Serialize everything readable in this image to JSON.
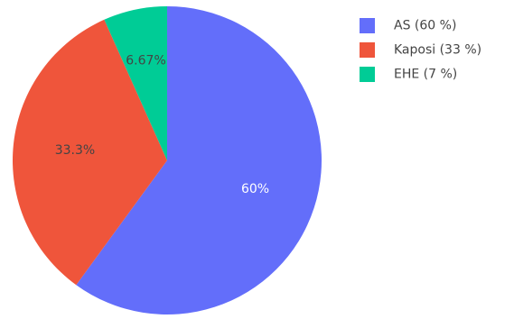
{
  "chart_data": {
    "type": "pie",
    "title": "",
    "labels": [
      "AS (60 %)",
      "Kaposi (33 %)",
      "EHE (7 %)"
    ],
    "values": [
      60,
      33.3,
      6.67
    ],
    "slice_labels": [
      "60%",
      "33.3%",
      "6.67%"
    ],
    "colors": [
      "#636efa",
      "#EF553B",
      "#00cc96"
    ],
    "label_colors": [
      "#ffffff",
      "#444444",
      "#444444"
    ],
    "direction": "clockwise",
    "start_angle": "top",
    "legend_position": "top-right"
  }
}
